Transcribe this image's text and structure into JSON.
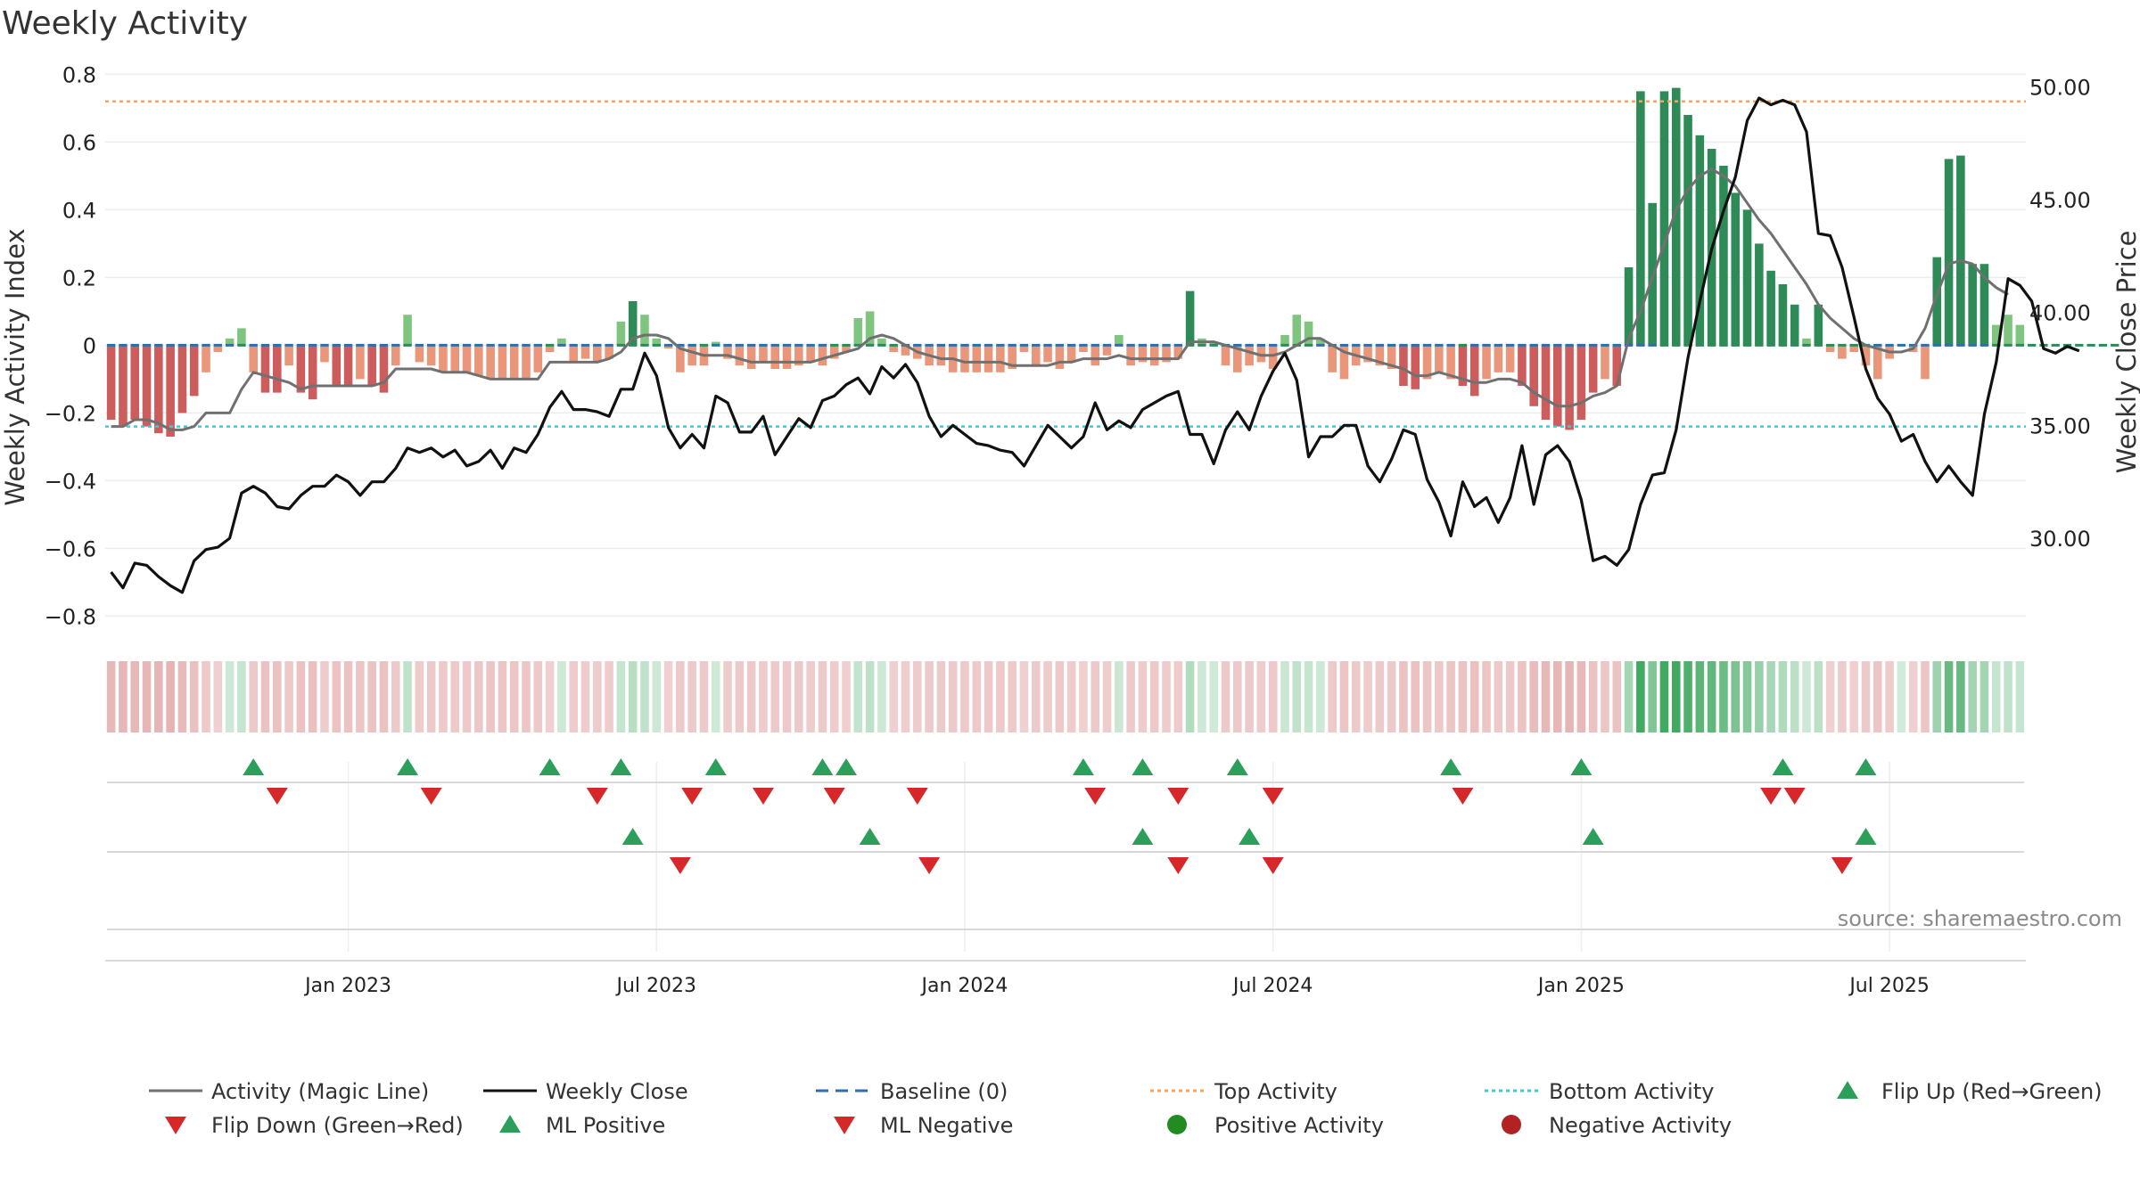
{
  "title": "Weekly Activity",
  "source": "source: sharemaestro.com",
  "colors": {
    "pos_strong": "#2e8b57",
    "pos_light": "#7fc47f",
    "neg_strong": "#cd5c5c",
    "neg_light": "#e9967a",
    "magic": "#707070",
    "close": "#111111",
    "baseline": "#2f6fa6",
    "top": "#f4a460",
    "bottom": "#40c8dc",
    "up": "#2ca05a",
    "down": "#d62828"
  },
  "chart_data": {
    "type": "bar+line",
    "title": "Weekly Activity",
    "ylabel": "Weekly Activity Index",
    "y2label": "Weekly Close Price",
    "ylim": [
      -0.87,
      0.83
    ],
    "y2lim": [
      25.5,
      51.0
    ],
    "yticks": [
      "0.8",
      "0.6",
      "0.4",
      "0.2",
      "0",
      "−0.2",
      "−0.4",
      "−0.6",
      "−0.8"
    ],
    "y2ticks": [
      "50.00",
      "45.00",
      "40.00",
      "35.00",
      "30.00"
    ],
    "xticks": [
      "Jan 2023",
      "Jul 2023",
      "Jan 2024",
      "Jul 2024",
      "Jan 2025",
      "Jul 2025"
    ],
    "top_activity": 0.72,
    "bottom_activity": -0.24,
    "activity": [
      -0.22,
      -0.24,
      -0.22,
      -0.24,
      -0.26,
      -0.27,
      -0.2,
      -0.15,
      -0.08,
      -0.02,
      0.02,
      0.05,
      -0.08,
      -0.14,
      -0.14,
      -0.06,
      -0.14,
      -0.16,
      -0.05,
      -0.12,
      -0.12,
      -0.1,
      -0.12,
      -0.14,
      -0.06,
      0.09,
      -0.05,
      -0.06,
      -0.08,
      -0.08,
      -0.08,
      -0.09,
      -0.1,
      -0.1,
      -0.1,
      -0.1,
      -0.08,
      -0.02,
      0.02,
      -0.05,
      -0.04,
      -0.05,
      -0.04,
      0.07,
      0.13,
      0.09,
      0.02,
      -0.01,
      -0.08,
      -0.06,
      -0.06,
      0.01,
      -0.04,
      -0.06,
      -0.07,
      -0.05,
      -0.07,
      -0.07,
      -0.06,
      -0.05,
      -0.06,
      -0.04,
      -0.02,
      0.08,
      0.1,
      0.02,
      -0.02,
      -0.03,
      -0.04,
      -0.06,
      -0.06,
      -0.08,
      -0.08,
      -0.08,
      -0.08,
      -0.08,
      -0.07,
      -0.02,
      -0.06,
      -0.05,
      -0.07,
      -0.05,
      -0.02,
      -0.06,
      -0.03,
      0.03,
      -0.06,
      -0.05,
      -0.06,
      -0.05,
      -0.04,
      0.16,
      0.02,
      0.01,
      -0.06,
      -0.08,
      -0.06,
      -0.05,
      -0.07,
      0.03,
      0.09,
      0.07,
      0.02,
      -0.08,
      -0.1,
      -0.06,
      -0.05,
      -0.06,
      -0.07,
      -0.12,
      -0.13,
      -0.1,
      -0.08,
      -0.1,
      -0.12,
      -0.15,
      -0.1,
      -0.08,
      -0.08,
      -0.12,
      -0.18,
      -0.22,
      -0.24,
      -0.25,
      -0.22,
      -0.14,
      -0.1,
      -0.12,
      0.23,
      0.75,
      0.42,
      0.75,
      0.76,
      0.68,
      0.62,
      0.58,
      0.53,
      0.45,
      0.4,
      0.3,
      0.22,
      0.18,
      0.12,
      0.02,
      0.12,
      -0.02,
      -0.04,
      -0.02,
      -0.06,
      -0.1,
      -0.04,
      0.0,
      -0.02,
      -0.1,
      0.26,
      0.55,
      0.56,
      0.24,
      0.24,
      0.06,
      0.09,
      0.06
    ],
    "magic_line": [
      -0.24,
      -0.24,
      -0.22,
      -0.22,
      -0.23,
      -0.25,
      -0.25,
      -0.24,
      -0.2,
      -0.2,
      -0.2,
      -0.13,
      -0.08,
      -0.09,
      -0.1,
      -0.11,
      -0.13,
      -0.12,
      -0.12,
      -0.12,
      -0.12,
      -0.12,
      -0.12,
      -0.11,
      -0.07,
      -0.07,
      -0.07,
      -0.07,
      -0.08,
      -0.08,
      -0.08,
      -0.09,
      -0.1,
      -0.1,
      -0.1,
      -0.1,
      -0.1,
      -0.05,
      -0.05,
      -0.05,
      -0.05,
      -0.05,
      -0.04,
      -0.02,
      0.02,
      0.03,
      0.03,
      0.02,
      -0.01,
      -0.02,
      -0.03,
      -0.03,
      -0.03,
      -0.04,
      -0.05,
      -0.05,
      -0.05,
      -0.05,
      -0.05,
      -0.05,
      -0.04,
      -0.03,
      -0.02,
      -0.01,
      0.02,
      0.03,
      0.02,
      0.0,
      -0.02,
      -0.03,
      -0.04,
      -0.04,
      -0.05,
      -0.05,
      -0.05,
      -0.05,
      -0.06,
      -0.06,
      -0.06,
      -0.06,
      -0.05,
      -0.05,
      -0.04,
      -0.04,
      -0.04,
      -0.03,
      -0.04,
      -0.04,
      -0.04,
      -0.04,
      -0.04,
      0.01,
      0.01,
      0.01,
      0.0,
      -0.01,
      -0.02,
      -0.03,
      -0.03,
      -0.02,
      0.0,
      0.02,
      0.02,
      0.0,
      -0.02,
      -0.03,
      -0.04,
      -0.05,
      -0.06,
      -0.07,
      -0.09,
      -0.09,
      -0.08,
      -0.09,
      -0.1,
      -0.11,
      -0.11,
      -0.1,
      -0.1,
      -0.11,
      -0.14,
      -0.16,
      -0.18,
      -0.18,
      -0.17,
      -0.15,
      -0.14,
      -0.12,
      0.02,
      0.1,
      0.2,
      0.3,
      0.4,
      0.46,
      0.5,
      0.52,
      0.5,
      0.47,
      0.42,
      0.37,
      0.33,
      0.28,
      0.23,
      0.18,
      0.12,
      0.08,
      0.05,
      0.02,
      0.0,
      -0.01,
      -0.02,
      -0.02,
      -0.01,
      0.05,
      0.15,
      0.24,
      0.25,
      0.24,
      0.2,
      0.17,
      0.15
    ],
    "close": [
      28.5,
      27.8,
      28.9,
      28.8,
      28.3,
      27.9,
      27.6,
      29.0,
      29.5,
      29.6,
      30.0,
      32.0,
      32.3,
      32.0,
      31.4,
      31.3,
      31.9,
      32.3,
      32.3,
      32.8,
      32.5,
      31.9,
      32.5,
      32.5,
      33.1,
      34.0,
      33.8,
      34.0,
      33.6,
      33.9,
      33.2,
      33.4,
      33.9,
      33.1,
      34.0,
      33.8,
      34.6,
      35.8,
      36.5,
      35.7,
      35.7,
      35.6,
      35.4,
      36.6,
      36.6,
      38.2,
      37.2,
      34.9,
      34.0,
      34.6,
      34.0,
      36.3,
      36.0,
      34.7,
      34.7,
      35.4,
      33.7,
      34.5,
      35.3,
      34.9,
      36.1,
      36.3,
      36.8,
      37.1,
      36.4,
      37.6,
      37.1,
      37.7,
      36.9,
      35.4,
      34.5,
      35.0,
      34.6,
      34.2,
      34.1,
      33.9,
      33.8,
      33.2,
      34.1,
      35.0,
      34.5,
      34.0,
      34.5,
      36.0,
      34.8,
      35.2,
      34.9,
      35.7,
      36.0,
      36.3,
      36.5,
      34.6,
      34.6,
      33.3,
      34.8,
      35.6,
      34.8,
      36.3,
      37.4,
      38.2,
      37.0,
      33.6,
      34.5,
      34.5,
      35.0,
      35.0,
      33.2,
      32.5,
      33.5,
      34.8,
      34.6,
      32.6,
      31.6,
      30.1,
      32.5,
      31.4,
      31.8,
      30.7,
      31.8,
      34.1,
      31.5,
      33.7,
      34.1,
      33.4,
      31.7,
      29.0,
      29.2,
      28.8,
      29.5,
      31.5,
      32.8,
      32.9,
      34.8,
      38.0,
      40.5,
      42.8,
      44.5,
      46.0,
      48.5,
      49.5,
      49.2,
      49.4,
      49.2,
      48.0,
      43.5,
      43.4,
      42.0,
      39.8,
      37.5,
      36.2,
      35.5,
      34.3,
      34.6,
      33.4,
      32.5,
      33.2,
      32.5,
      31.9,
      35.5,
      37.8,
      41.5,
      41.2,
      40.5,
      38.4,
      38.2,
      38.5,
      38.3
    ],
    "ml_sign": [
      -1,
      -1,
      -1,
      -1,
      -1,
      -1,
      -1,
      -1,
      -1,
      -1,
      -1,
      1,
      -1,
      -1,
      -1,
      -1,
      -1,
      -1,
      -1,
      -1,
      -1,
      -1,
      -1,
      -1,
      -1,
      1,
      -1,
      -1,
      -1,
      -1,
      -1,
      -1,
      -1,
      -1,
      -1,
      -1,
      -1,
      1,
      -1,
      -1,
      -1,
      -1,
      -1,
      1,
      1,
      1,
      1,
      -1,
      -1,
      -1,
      1,
      -1,
      -1,
      -1,
      -1,
      -1,
      -1,
      -1,
      -1,
      -1,
      -1,
      1,
      1,
      1,
      1,
      1,
      1,
      -1,
      -1,
      -1,
      -1,
      -1,
      -1,
      -1,
      -1,
      -1,
      -1,
      -1,
      -1,
      -1,
      -1,
      -1,
      -1,
      -1,
      -1,
      -1,
      -1,
      -1,
      -1,
      -1,
      -1,
      1,
      1,
      1,
      -1,
      -1,
      -1,
      -1,
      -1,
      1,
      1,
      1,
      -1,
      -1,
      -1,
      -1,
      -1,
      -1,
      -1,
      -1,
      -1,
      -1,
      -1,
      -1,
      1,
      -1,
      -1,
      -1,
      -1,
      -1,
      -1,
      -1,
      -1,
      -1,
      -1,
      -1,
      -1,
      -1,
      -1,
      -1,
      -1,
      1,
      1,
      1,
      1,
      1,
      1,
      1,
      1,
      1,
      1,
      1,
      1,
      1,
      1,
      1,
      1,
      1,
      1,
      -1,
      -1,
      -1,
      -1,
      -1,
      -1,
      -1,
      -1,
      -1,
      -1,
      1,
      1,
      1,
      1,
      1,
      1,
      1,
      1,
      1,
      1,
      1
    ],
    "flip_up": [
      12,
      25,
      37,
      43,
      51,
      60,
      62,
      82,
      87,
      95,
      113,
      124,
      141,
      148
    ],
    "flip_down": [
      14,
      27,
      41,
      49,
      55,
      61,
      68,
      83,
      90,
      98,
      114,
      140,
      142
    ],
    "ml_positive": [
      44,
      64,
      87,
      96,
      125,
      148
    ],
    "ml_negative": [
      48,
      69,
      90,
      98,
      146
    ],
    "legend": [
      "Activity (Magic Line)",
      "Weekly Close",
      "Baseline (0)",
      "Top Activity",
      "Bottom Activity",
      "Flip Up (Red→Green)",
      "Flip Down (Green→Red)",
      "ML Positive",
      "ML Negative",
      "Positive Activity",
      "Negative Activity"
    ]
  }
}
